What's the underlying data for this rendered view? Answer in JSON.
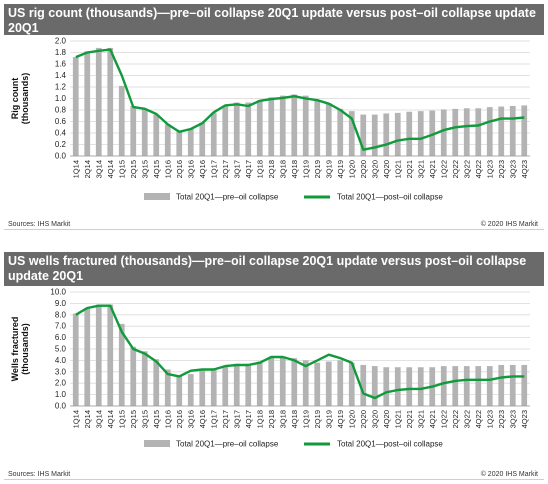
{
  "colors": {
    "bar": "#b3b3b3",
    "line": "#119a3b",
    "header_bg": "#6a6a6a",
    "grid": "#d9d9d9"
  },
  "chart_data": [
    {
      "type": "bar",
      "title": "US rig count (thousands)—pre–oil collapse 20Q1 update versus post–oil collapse update 20Q1",
      "ylabel": "Rig count\n(thousands)",
      "ylim": [
        0,
        2.0
      ],
      "yticks": [
        "0.0",
        "0.2",
        "0.4",
        "0.6",
        "0.8",
        "1.0",
        "1.2",
        "1.4",
        "1.6",
        "1.8",
        "2.0"
      ],
      "grid": true,
      "legend_position": "bottom",
      "categories": [
        "1Q14",
        "2Q14",
        "3Q14",
        "4Q14",
        "1Q15",
        "2Q15",
        "3Q15",
        "4Q15",
        "1Q16",
        "2Q16",
        "3Q16",
        "4Q16",
        "1Q17",
        "2Q17",
        "3Q17",
        "4Q17",
        "1Q18",
        "2Q18",
        "3Q18",
        "4Q18",
        "1Q19",
        "2Q19",
        "3Q19",
        "4Q19",
        "1Q20",
        "2Q20",
        "3Q20",
        "4Q20",
        "1Q21",
        "2Q21",
        "3Q21",
        "4Q21",
        "1Q22",
        "2Q22",
        "3Q22",
        "4Q22",
        "1Q23",
        "2Q23",
        "3Q23",
        "4Q23"
      ],
      "series": [
        {
          "name": "Total 20Q1—pre–oil collapse",
          "kind": "bar",
          "values": [
            1.72,
            1.82,
            1.88,
            1.88,
            1.22,
            0.87,
            0.82,
            0.72,
            0.55,
            0.43,
            0.47,
            0.58,
            0.75,
            0.87,
            0.93,
            0.93,
            0.97,
            1.02,
            1.05,
            1.07,
            1.05,
            0.97,
            0.92,
            0.82,
            0.78,
            0.72,
            0.72,
            0.74,
            0.75,
            0.77,
            0.78,
            0.79,
            0.81,
            0.82,
            0.83,
            0.83,
            0.85,
            0.86,
            0.87,
            0.88
          ]
        },
        {
          "name": "Total 20Q1—post–oil collapse",
          "kind": "line",
          "values": [
            1.72,
            1.8,
            1.83,
            1.85,
            1.4,
            0.85,
            0.82,
            0.73,
            0.55,
            0.42,
            0.47,
            0.57,
            0.76,
            0.88,
            0.9,
            0.87,
            0.96,
            0.99,
            1.01,
            1.04,
            1.0,
            0.97,
            0.91,
            0.8,
            0.65,
            0.11,
            0.15,
            0.2,
            0.27,
            0.3,
            0.3,
            0.37,
            0.45,
            0.5,
            0.52,
            0.53,
            0.6,
            0.65,
            0.65,
            0.67
          ]
        }
      ],
      "source": "Sources: IHS Markit",
      "copyright": "© 2020 IHS Markit"
    },
    {
      "type": "bar",
      "title": "US wells fractured (thousands)—pre–oil collapse 20Q1 update versus post–oil collapse update 20Q1",
      "ylabel": "Wells fractured\n(thousands)",
      "ylim": [
        0,
        10.0
      ],
      "yticks": [
        "0.0",
        "1.0",
        "2.0",
        "3.0",
        "4.0",
        "5.0",
        "6.0",
        "7.0",
        "8.0",
        "9.0",
        "10.0"
      ],
      "grid": true,
      "legend_position": "bottom",
      "categories": [
        "1Q14",
        "2Q14",
        "3Q14",
        "4Q14",
        "1Q15",
        "2Q15",
        "3Q15",
        "4Q15",
        "1Q16",
        "2Q16",
        "3Q16",
        "4Q16",
        "1Q17",
        "2Q17",
        "3Q17",
        "4Q17",
        "1Q18",
        "2Q18",
        "3Q18",
        "4Q18",
        "1Q19",
        "2Q19",
        "3Q19",
        "4Q19",
        "1Q20",
        "2Q20",
        "3Q20",
        "4Q20",
        "1Q21",
        "2Q21",
        "3Q21",
        "4Q21",
        "1Q22",
        "2Q22",
        "3Q22",
        "4Q22",
        "1Q23",
        "2Q23",
        "3Q23",
        "4Q23"
      ],
      "series": [
        {
          "name": "Total 20Q1—pre–oil collapse",
          "kind": "bar",
          "values": [
            8.1,
            8.6,
            8.9,
            8.9,
            7.2,
            5.2,
            4.8,
            4.1,
            3.2,
            2.6,
            2.8,
            3.1,
            3.3,
            3.5,
            3.7,
            3.7,
            3.9,
            4.2,
            4.3,
            4.2,
            4.0,
            3.8,
            3.9,
            4.0,
            3.8,
            3.6,
            3.5,
            3.4,
            3.4,
            3.4,
            3.4,
            3.4,
            3.5,
            3.5,
            3.5,
            3.5,
            3.5,
            3.6,
            3.6,
            3.6
          ]
        },
        {
          "name": "Total 20Q1—post–oil collapse",
          "kind": "line",
          "values": [
            8.0,
            8.6,
            8.8,
            8.8,
            6.5,
            5.0,
            4.6,
            3.9,
            2.8,
            2.6,
            3.1,
            3.2,
            3.2,
            3.5,
            3.6,
            3.6,
            3.8,
            4.3,
            4.3,
            4.0,
            3.5,
            4.0,
            4.5,
            4.2,
            3.8,
            1.1,
            0.7,
            1.2,
            1.4,
            1.5,
            1.5,
            1.7,
            2.0,
            2.2,
            2.3,
            2.3,
            2.3,
            2.5,
            2.6,
            2.6
          ]
        }
      ],
      "source": "Sources: IHS Markit",
      "copyright": "© 2020 IHS Markit"
    }
  ]
}
